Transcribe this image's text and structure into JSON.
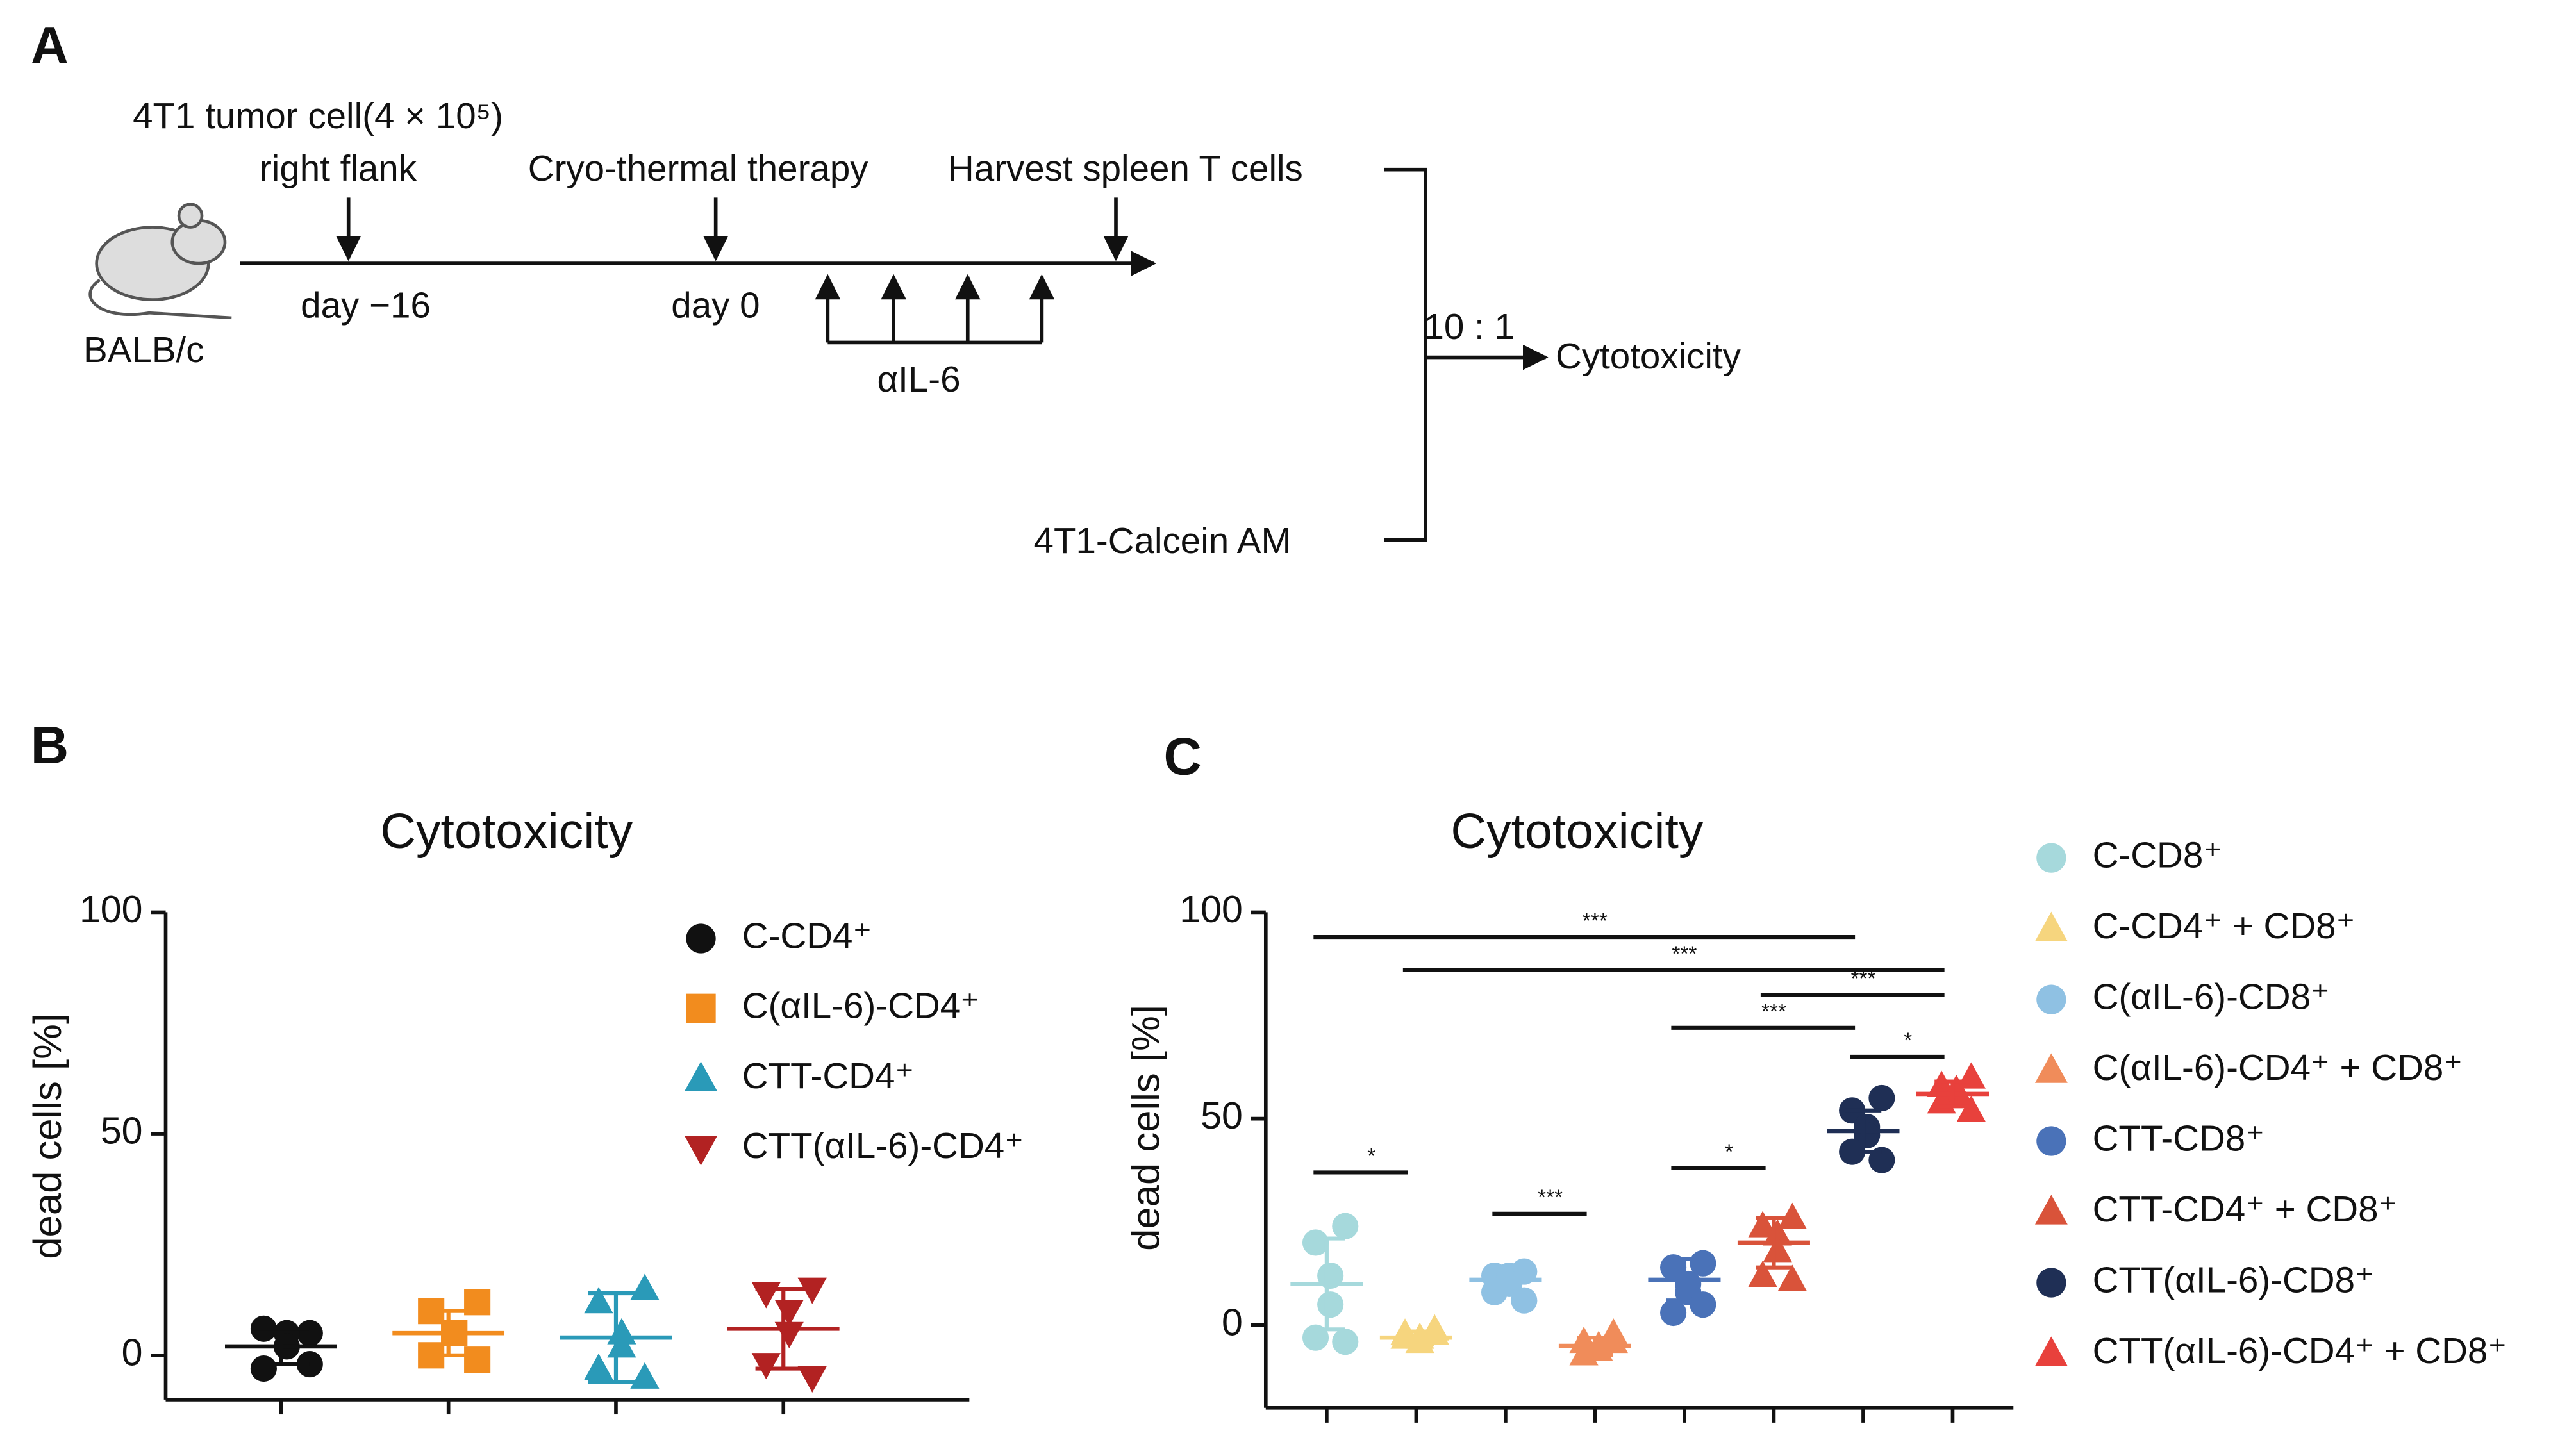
{
  "diagram": {
    "panel": "A",
    "cell_line": "4T1 tumor cell(4 × 10⁵)",
    "site": "right flank",
    "therapy": "Cryo-thermal therapy",
    "harvest": "Harvest spleen T cells",
    "day_start": "day −16",
    "day_zero": "day 0",
    "antibody": "αIL-6",
    "mouse": "BALB/c",
    "ratio": "10 : 1",
    "assay": "Cytotoxicity",
    "target": "4T1-Calcein AM"
  },
  "chart_data": [
    {
      "type": "dot",
      "panel": "B",
      "title": "Cytotoxicity",
      "y_label": "dead cells [%]",
      "ylim": [
        -10,
        100
      ],
      "yticks": [
        0,
        50,
        100
      ],
      "series": [
        {
          "name": "C-CD4⁺",
          "color": "#111111",
          "marker": "circle",
          "values": [
            5,
            6,
            5,
            2,
            -3,
            -2
          ],
          "mean": 2,
          "sd": 4
        },
        {
          "name": "C(αIL-6)-CD4⁺",
          "color": "#f28c1e",
          "marker": "square",
          "values": [
            12,
            10,
            5,
            5,
            0,
            -1
          ],
          "mean": 5,
          "sd": 5
        },
        {
          "name": "CTT-CD4⁺",
          "color": "#2a9ab8",
          "marker": "triangle-up",
          "values": [
            15,
            12,
            5,
            2,
            -3,
            -5
          ],
          "mean": 4,
          "sd": 10
        },
        {
          "name": "CTT(αIL-6)-CD4⁺",
          "color": "#b22222",
          "marker": "triangle-down",
          "values": [
            15,
            14,
            10,
            5,
            -2,
            -5
          ],
          "mean": 6,
          "sd": 9
        }
      ]
    },
    {
      "type": "dot",
      "panel": "C",
      "title": "Cytotoxicity",
      "y_label": "dead cells [%]",
      "ylim": [
        -20,
        100
      ],
      "yticks": [
        0,
        50,
        100
      ],
      "series": [
        {
          "name": "C-CD8⁺",
          "color": "#a6d9dc",
          "marker": "circle",
          "values": [
            24,
            20,
            12,
            5,
            -3,
            -4
          ],
          "mean": 10,
          "sd": 11
        },
        {
          "name": "C-CD4⁺ + CD8⁺",
          "color": "#f6d57e",
          "marker": "triangle-up",
          "values": [
            -1,
            -2,
            -3,
            -4,
            -3,
            -2
          ],
          "mean": -3,
          "sd": 1.5
        },
        {
          "name": "C(αIL-6)-CD8⁺",
          "color": "#8fc1e3",
          "marker": "circle",
          "values": [
            13,
            12,
            12,
            10,
            8,
            6
          ],
          "mean": 11,
          "sd": 3
        },
        {
          "name": "C(αIL-6)-CD4⁺ + CD8⁺",
          "color": "#f08c5a",
          "marker": "triangle-up",
          "values": [
            -2,
            -4,
            -5,
            -6,
            -7,
            -4
          ],
          "mean": -5,
          "sd": 2
        },
        {
          "name": "CTT-CD8⁺",
          "color": "#4a72b8",
          "marker": "circle",
          "values": [
            15,
            14,
            10,
            8,
            3,
            5
          ],
          "mean": 11,
          "sd": 5
        },
        {
          "name": "CTT-CD4⁺ + CD8⁺",
          "color": "#d9533a",
          "marker": "triangle-up",
          "values": [
            26,
            24,
            22,
            18,
            12,
            11
          ],
          "mean": 20,
          "sd": 6
        },
        {
          "name": "CTT(αIL-6)-CD8⁺",
          "color": "#1f2f55",
          "marker": "circle",
          "values": [
            55,
            52,
            48,
            46,
            42,
            40
          ],
          "mean": 47,
          "sd": 5
        },
        {
          "name": "CTT(αIL-6)-CD4⁺ + CD8⁺",
          "color": "#e8413c",
          "marker": "triangle-up",
          "values": [
            60,
            58,
            57,
            56,
            54,
            52
          ],
          "mean": 56,
          "sd": 3
        }
      ],
      "significance": [
        {
          "from": 0,
          "to": 6,
          "y": 94,
          "label": "***"
        },
        {
          "from": 1,
          "to": 7,
          "y": 86,
          "label": "***"
        },
        {
          "from": 5,
          "to": 7,
          "y": 80,
          "label": "***"
        },
        {
          "from": 4,
          "to": 6,
          "y": 72,
          "label": "***"
        },
        {
          "from": 6,
          "to": 7,
          "y": 65,
          "label": "*"
        },
        {
          "from": 0,
          "to": 1,
          "y": 37,
          "label": "*"
        },
        {
          "from": 2,
          "to": 3,
          "y": 27,
          "label": "***"
        },
        {
          "from": 4,
          "to": 5,
          "y": 38,
          "label": "*"
        }
      ]
    }
  ]
}
